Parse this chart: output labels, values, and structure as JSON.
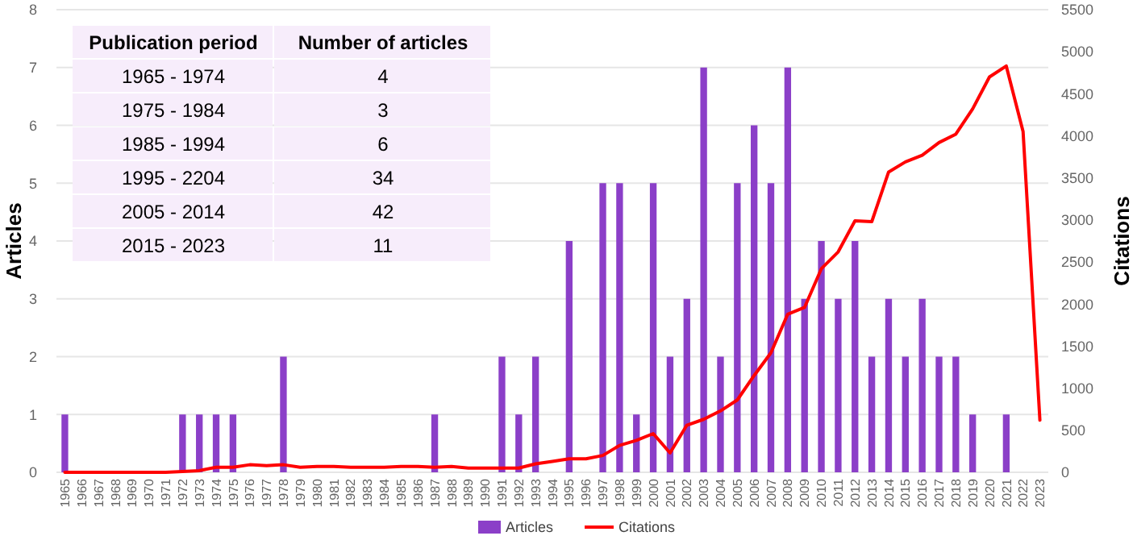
{
  "chart_data": {
    "type": "bar",
    "ylabel": "Articles",
    "y2label": "Citations",
    "categories": [
      "1965",
      "1966",
      "1967",
      "1968",
      "1969",
      "1970",
      "1971",
      "1972",
      "1973",
      "1974",
      "1975",
      "1976",
      "1977",
      "1978",
      "1979",
      "1980",
      "1981",
      "1982",
      "1983",
      "1984",
      "1985",
      "1986",
      "1987",
      "1988",
      "1989",
      "1990",
      "1991",
      "1992",
      "1993",
      "1994",
      "1995",
      "1996",
      "1997",
      "1998",
      "1999",
      "2000",
      "2001",
      "2002",
      "2003",
      "2004",
      "2005",
      "2006",
      "2007",
      "2008",
      "2009",
      "2010",
      "2011",
      "2012",
      "2013",
      "2014",
      "2015",
      "2016",
      "2017",
      "2018",
      "2019",
      "2020",
      "2021",
      "2022",
      "2023"
    ],
    "series": [
      {
        "name": "Articles",
        "color": "#8b3fc8",
        "values": [
          1,
          0,
          0,
          0,
          0,
          0,
          0,
          1,
          1,
          1,
          1,
          0,
          0,
          2,
          0,
          0,
          0,
          0,
          0,
          0,
          0,
          0,
          1,
          0,
          0,
          0,
          2,
          1,
          2,
          0,
          4,
          0,
          5,
          5,
          1,
          5,
          2,
          3,
          7,
          2,
          5,
          6,
          5,
          7,
          3,
          4,
          3,
          4,
          2,
          3,
          2,
          3,
          2,
          2,
          1,
          0,
          1,
          0,
          0
        ]
      },
      {
        "name": "Citations",
        "type": "line",
        "axis": "y2",
        "color": "#ff0000",
        "values": [
          0,
          0,
          0,
          0,
          0,
          0,
          0,
          10,
          20,
          60,
          60,
          90,
          80,
          90,
          60,
          70,
          70,
          60,
          60,
          60,
          70,
          70,
          60,
          70,
          50,
          50,
          50,
          50,
          100,
          130,
          160,
          160,
          200,
          320,
          380,
          460,
          230,
          560,
          630,
          730,
          860,
          1150,
          1420,
          1880,
          1960,
          2420,
          2620,
          2990,
          2980,
          3570,
          3690,
          3770,
          3920,
          4020,
          4320,
          4700,
          4830,
          4050,
          620
        ]
      }
    ],
    "ylim": [
      0,
      8
    ],
    "yticks": [
      0,
      1,
      2,
      3,
      4,
      5,
      6,
      7,
      8
    ],
    "y2lim": [
      0,
      5500
    ],
    "y2ticks": [
      0,
      500,
      1000,
      1500,
      2000,
      2500,
      3000,
      3500,
      4000,
      4500,
      5000,
      5500
    ],
    "grid": "y",
    "legend": "bottom",
    "annotations": [
      "Publication period",
      "Number of articles",
      "1965 - 1974",
      "4",
      "1975 - 1984",
      "3",
      "1985 - 1994",
      "6",
      "1995 - 2204",
      "34",
      "2005 - 2014",
      "42",
      "2015 - 2023",
      "11"
    ]
  }
}
